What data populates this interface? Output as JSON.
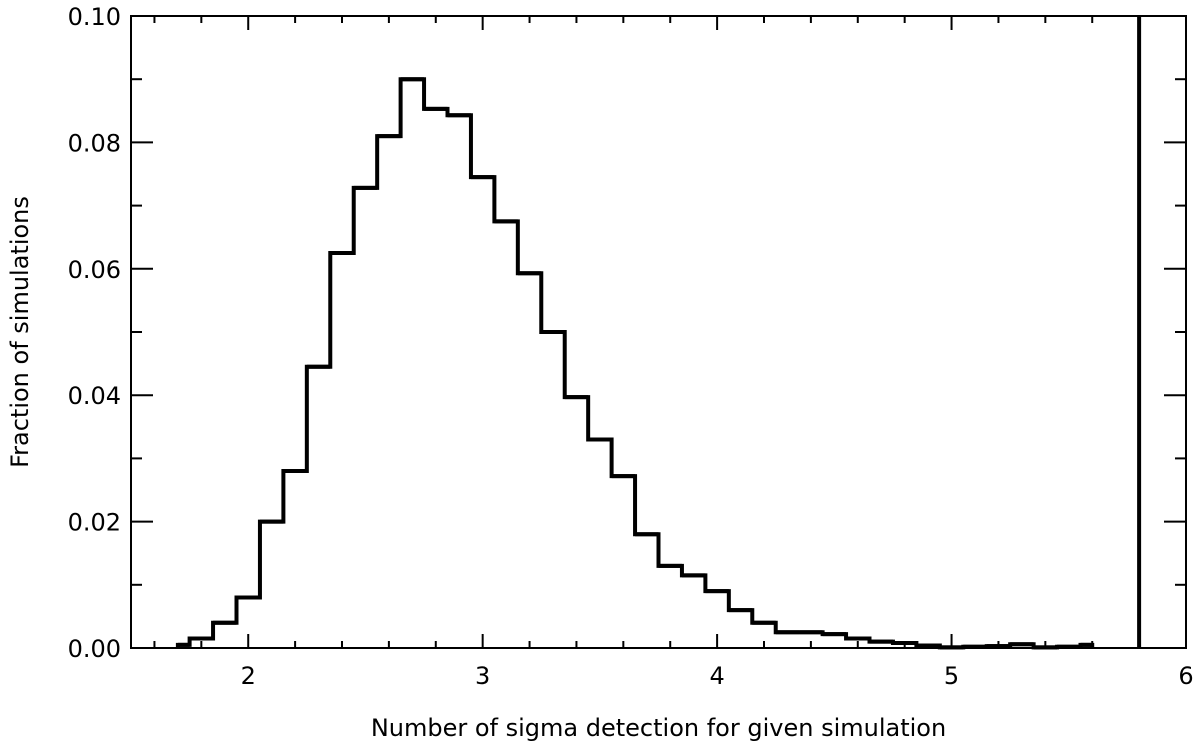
{
  "chart_data": {
    "type": "histogram",
    "title": "",
    "xlabel": "Number of sigma detection for given simulation",
    "ylabel": "Fraction of simulations",
    "xlim": [
      1.5,
      6.0
    ],
    "ylim": [
      0.0,
      0.1
    ],
    "x_ticks": [
      {
        "value": 2,
        "label": "2"
      },
      {
        "value": 3,
        "label": "3"
      },
      {
        "value": 4,
        "label": "4"
      },
      {
        "value": 5,
        "label": "5"
      },
      {
        "value": 6,
        "label": "6"
      }
    ],
    "y_ticks": [
      {
        "value": 0.0,
        "label": "0.00"
      },
      {
        "value": 0.02,
        "label": "0.02"
      },
      {
        "value": 0.04,
        "label": "0.04"
      },
      {
        "value": 0.06,
        "label": "0.06"
      },
      {
        "value": 0.08,
        "label": "0.08"
      },
      {
        "value": 0.1,
        "label": "0.10"
      }
    ],
    "grid": false,
    "line_color": "#000000",
    "bins": [
      {
        "x0": 1.7,
        "x1": 1.75,
        "y": 0.0005
      },
      {
        "x0": 1.75,
        "x1": 1.85,
        "y": 0.0015
      },
      {
        "x0": 1.85,
        "x1": 1.95,
        "y": 0.004
      },
      {
        "x0": 1.95,
        "x1": 2.05,
        "y": 0.008
      },
      {
        "x0": 2.05,
        "x1": 2.15,
        "y": 0.02
      },
      {
        "x0": 2.15,
        "x1": 2.25,
        "y": 0.028
      },
      {
        "x0": 2.25,
        "x1": 2.35,
        "y": 0.0445
      },
      {
        "x0": 2.35,
        "x1": 2.45,
        "y": 0.0625
      },
      {
        "x0": 2.45,
        "x1": 2.55,
        "y": 0.0728
      },
      {
        "x0": 2.55,
        "x1": 2.65,
        "y": 0.081
      },
      {
        "x0": 2.65,
        "x1": 2.75,
        "y": 0.09
      },
      {
        "x0": 2.75,
        "x1": 2.85,
        "y": 0.0853
      },
      {
        "x0": 2.85,
        "x1": 2.95,
        "y": 0.0843
      },
      {
        "x0": 2.95,
        "x1": 3.05,
        "y": 0.0745
      },
      {
        "x0": 3.05,
        "x1": 3.15,
        "y": 0.0675
      },
      {
        "x0": 3.15,
        "x1": 3.25,
        "y": 0.0593
      },
      {
        "x0": 3.25,
        "x1": 3.35,
        "y": 0.05
      },
      {
        "x0": 3.35,
        "x1": 3.45,
        "y": 0.0397
      },
      {
        "x0": 3.45,
        "x1": 3.55,
        "y": 0.033
      },
      {
        "x0": 3.55,
        "x1": 3.65,
        "y": 0.0272
      },
      {
        "x0": 3.65,
        "x1": 3.75,
        "y": 0.018
      },
      {
        "x0": 3.75,
        "x1": 3.85,
        "y": 0.013
      },
      {
        "x0": 3.85,
        "x1": 3.95,
        "y": 0.0115
      },
      {
        "x0": 3.95,
        "x1": 4.05,
        "y": 0.009
      },
      {
        "x0": 4.05,
        "x1": 4.15,
        "y": 0.006
      },
      {
        "x0": 4.15,
        "x1": 4.25,
        "y": 0.004
      },
      {
        "x0": 4.25,
        "x1": 4.35,
        "y": 0.0025
      },
      {
        "x0": 4.35,
        "x1": 4.45,
        "y": 0.0025
      },
      {
        "x0": 4.45,
        "x1": 4.55,
        "y": 0.0022
      },
      {
        "x0": 4.55,
        "x1": 4.65,
        "y": 0.0015
      },
      {
        "x0": 4.65,
        "x1": 4.75,
        "y": 0.001
      },
      {
        "x0": 4.75,
        "x1": 4.85,
        "y": 0.0008
      },
      {
        "x0": 4.85,
        "x1": 4.95,
        "y": 0.0004
      },
      {
        "x0": 4.95,
        "x1": 5.05,
        "y": 0.0001
      },
      {
        "x0": 5.05,
        "x1": 5.15,
        "y": 0.0002
      },
      {
        "x0": 5.15,
        "x1": 5.25,
        "y": 0.0003
      },
      {
        "x0": 5.25,
        "x1": 5.35,
        "y": 0.0006
      },
      {
        "x0": 5.35,
        "x1": 5.45,
        "y": 0.0001
      },
      {
        "x0": 5.45,
        "x1": 5.55,
        "y": 0.0002
      },
      {
        "x0": 5.55,
        "x1": 5.6,
        "y": 0.0005
      }
    ],
    "marker_line": {
      "x": 5.8
    }
  }
}
